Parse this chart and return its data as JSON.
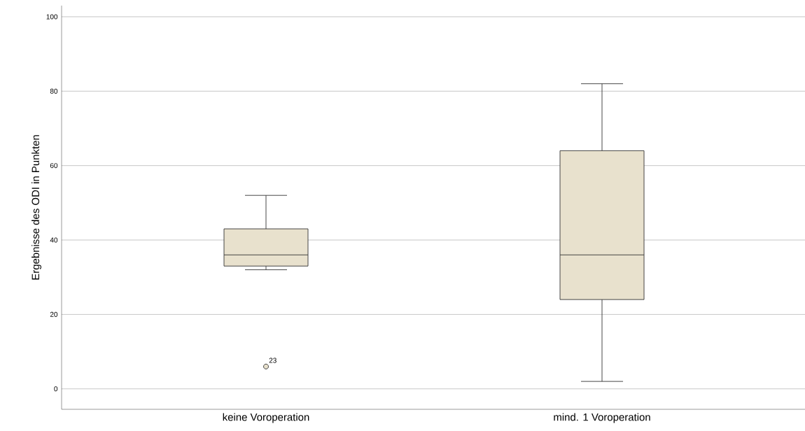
{
  "chart_data": {
    "type": "box",
    "ylabel": "Ergebnisse des ODI in Punkten",
    "categories": [
      "keine Voroperation",
      "mind. 1 Voroperation"
    ],
    "boxes": [
      {
        "low": 32,
        "q1": 33,
        "median": 36,
        "q3": 43,
        "high": 52,
        "outliers": [
          6
        ]
      },
      {
        "low": 2,
        "q1": 24,
        "median": 36,
        "q3": 64,
        "high": 82
      }
    ],
    "color": "#e8e1cd",
    "ylim": [
      -5.5,
      103
    ],
    "yticks": [
      0,
      20,
      40,
      60,
      80,
      100
    ],
    "grid": "y",
    "annotations": [
      "23"
    ]
  }
}
